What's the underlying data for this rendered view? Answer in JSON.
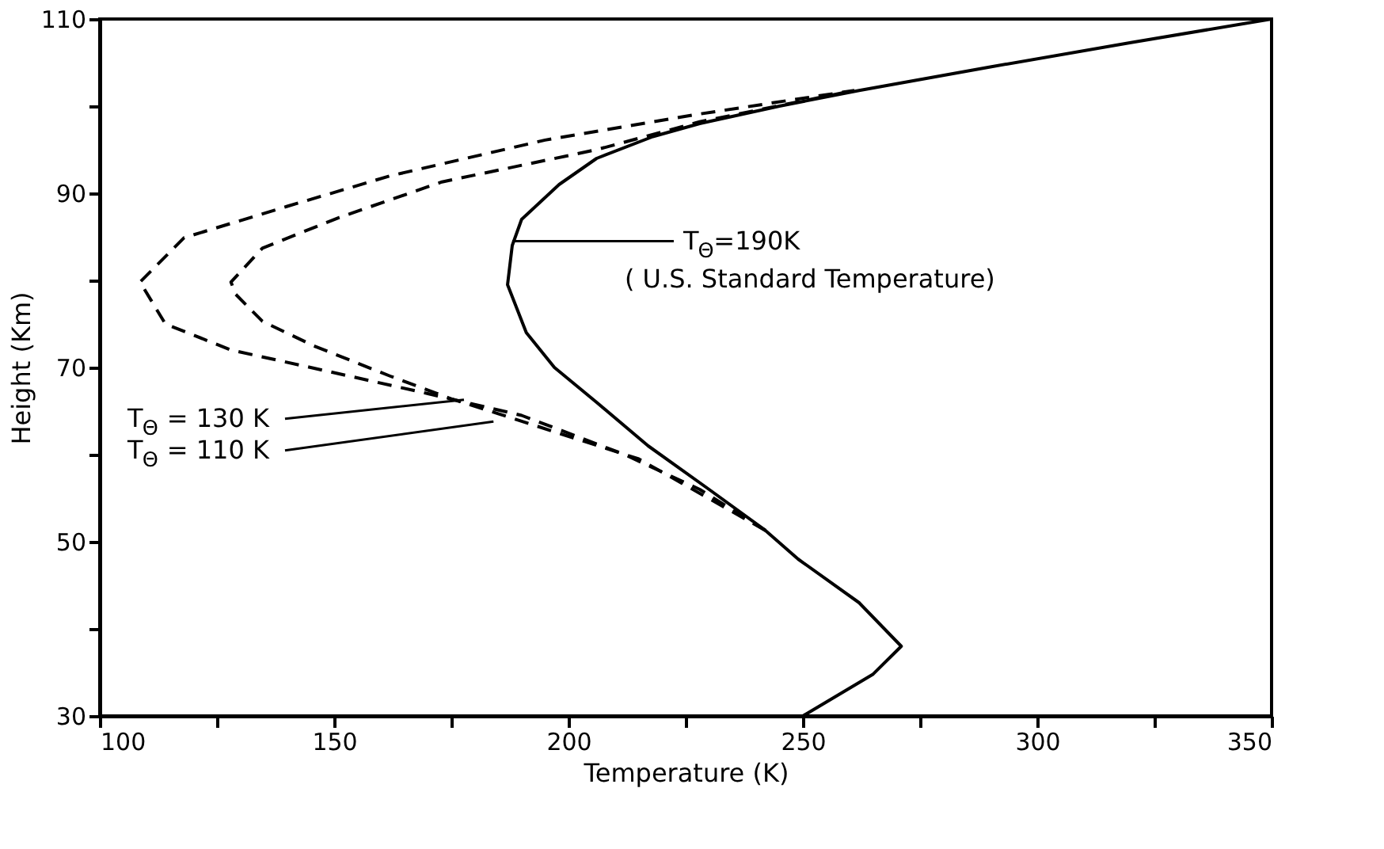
{
  "chart_data": {
    "type": "line",
    "xlabel": "Temperature (K)",
    "ylabel": "Height (Km)",
    "xlim": [
      100,
      350
    ],
    "ylim": [
      30,
      110
    ],
    "xticks": [
      100,
      {
        "value": 125,
        "label": null
      },
      150,
      {
        "value": 175,
        "label": null
      },
      200,
      {
        "value": 225,
        "label": null
      },
      250,
      {
        "value": 275,
        "label": null
      },
      300,
      {
        "value": 325,
        "label": null
      },
      350
    ],
    "yticks": [
      30,
      {
        "value": 40,
        "label": null
      },
      50,
      {
        "value": 60,
        "label": null
      },
      70,
      {
        "value": 80,
        "label": null
      },
      90,
      {
        "value": 100,
        "label": null
      },
      110
    ],
    "grid": false,
    "series": [
      {
        "color": "#000000",
        "line_style": "solid",
        "x": [
          250,
          265,
          271,
          262,
          249,
          242,
          230,
          217,
          206,
          197,
          191,
          187,
          188,
          190,
          198,
          206,
          218,
          228,
          245,
          262,
          290,
          320,
          350
        ],
        "values": [
          30,
          34.8,
          38,
          43,
          48,
          51.3,
          56,
          61,
          66,
          70,
          74,
          79.5,
          84,
          87,
          91,
          94,
          96.5,
          98,
          100,
          101.8,
          104.5,
          107.3,
          110
        ]
      },
      {
        "color": "#000000",
        "line_style": "dashed",
        "x": [
          242,
          215,
          185,
          175,
          162,
          145.6,
          134.7,
          129,
          128,
          134.7,
          151,
          173,
          206,
          228,
          261
        ],
        "values": [
          51.3,
          59.5,
          64.7,
          66.4,
          69,
          72.5,
          75.3,
          78.4,
          79.8,
          83.7,
          87.2,
          91.3,
          95,
          98.2,
          101.8
        ]
      },
      {
        "color": "#000000",
        "line_style": "dashed",
        "x": [
          242,
          228,
          212,
          190,
          170,
          145,
          128,
          114,
          108.6,
          118,
          140,
          162,
          195,
          228,
          261
        ],
        "values": [
          51.3,
          56,
          60,
          64.5,
          67,
          70,
          72,
          75,
          79.8,
          84.9,
          88.5,
          92,
          96.1,
          99.1,
          101.8
        ]
      }
    ],
    "annotations": [
      {
        "text": "T$_{Θ}$=190K",
        "x": 188,
        "y": 84.5
      },
      "( U.S. Standard Temperature)",
      {
        "text": "T$_{Θ}$ = 130 K",
        "x": 177.7,
        "y": 66.3
      },
      {
        "text": "T$_{Θ}$ = 110 K",
        "x": 184,
        "y": 63.8
      }
    ]
  }
}
